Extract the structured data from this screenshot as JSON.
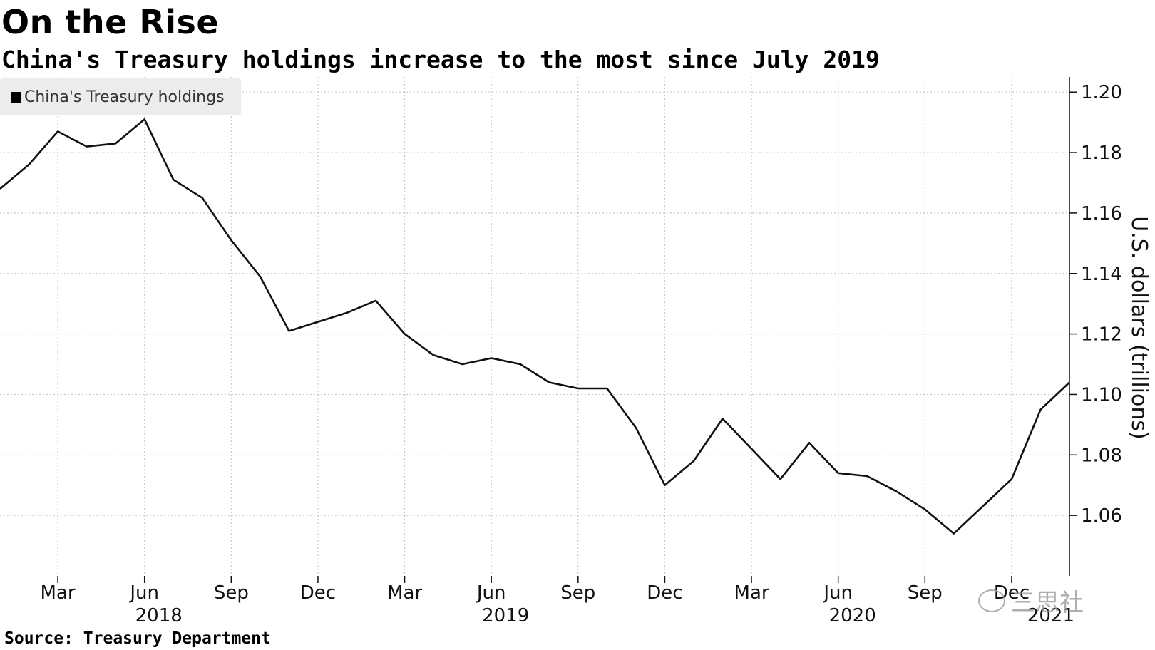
{
  "header": {
    "title": "On the Rise",
    "subtitle": "China's Treasury holdings increase to the most since July 2019"
  },
  "footer": {
    "source": "Source: Treasury Department"
  },
  "watermark": {
    "text": "三思社",
    "icon": "wechat-icon"
  },
  "colors": {
    "line": "#111111",
    "grid": "#c8c8c8",
    "legend_bg": "#ececec"
  },
  "chart_data": {
    "type": "line",
    "legend": "China's Treasury holdings",
    "legend_position": "top-left",
    "ylabel": "U.S. dollars (trillions)",
    "y_axis_side": "right",
    "grid": true,
    "ylim": [
      1.04,
      1.205
    ],
    "yticks": [
      1.06,
      1.08,
      1.1,
      1.12,
      1.14,
      1.16,
      1.18,
      1.2
    ],
    "ytick_labels": [
      "1.06",
      "1.08",
      "1.10",
      "1.12",
      "1.14",
      "1.16",
      "1.18",
      "1.20"
    ],
    "xlim": [
      "2018-01",
      "2021-02"
    ],
    "xticks": [
      {
        "date": "2018-03",
        "label": "Mar",
        "year": ""
      },
      {
        "date": "2018-06",
        "label": "Jun",
        "year": "2018"
      },
      {
        "date": "2018-09",
        "label": "Sep",
        "year": ""
      },
      {
        "date": "2018-12",
        "label": "Dec",
        "year": ""
      },
      {
        "date": "2019-03",
        "label": "Mar",
        "year": ""
      },
      {
        "date": "2019-06",
        "label": "Jun",
        "year": "2019"
      },
      {
        "date": "2019-09",
        "label": "Sep",
        "year": ""
      },
      {
        "date": "2019-12",
        "label": "Dec",
        "year": ""
      },
      {
        "date": "2020-03",
        "label": "Mar",
        "year": ""
      },
      {
        "date": "2020-06",
        "label": "Jun",
        "year": "2020"
      },
      {
        "date": "2020-09",
        "label": "Sep",
        "year": ""
      },
      {
        "date": "2020-12",
        "label": "Dec",
        "year": "2021"
      }
    ],
    "series": [
      {
        "name": "China's Treasury holdings",
        "x": [
          "2018-01",
          "2018-02",
          "2018-03",
          "2018-04",
          "2018-05",
          "2018-06",
          "2018-07",
          "2018-08",
          "2018-09",
          "2018-10",
          "2018-11",
          "2018-12",
          "2019-01",
          "2019-02",
          "2019-03",
          "2019-04",
          "2019-05",
          "2019-06",
          "2019-07",
          "2019-08",
          "2019-09",
          "2019-10",
          "2019-11",
          "2019-12",
          "2020-01",
          "2020-02",
          "2020-03",
          "2020-04",
          "2020-05",
          "2020-06",
          "2020-07",
          "2020-08",
          "2020-09",
          "2020-10",
          "2020-11",
          "2020-12",
          "2021-01",
          "2021-02"
        ],
        "values": [
          1.168,
          1.176,
          1.187,
          1.182,
          1.183,
          1.191,
          1.171,
          1.165,
          1.151,
          1.139,
          1.121,
          1.124,
          1.127,
          1.131,
          1.12,
          1.113,
          1.11,
          1.112,
          1.11,
          1.104,
          1.102,
          1.102,
          1.089,
          1.07,
          1.078,
          1.092,
          1.082,
          1.072,
          1.084,
          1.074,
          1.073,
          1.068,
          1.062,
          1.054,
          1.063,
          1.072,
          1.095,
          1.104
        ]
      }
    ]
  }
}
